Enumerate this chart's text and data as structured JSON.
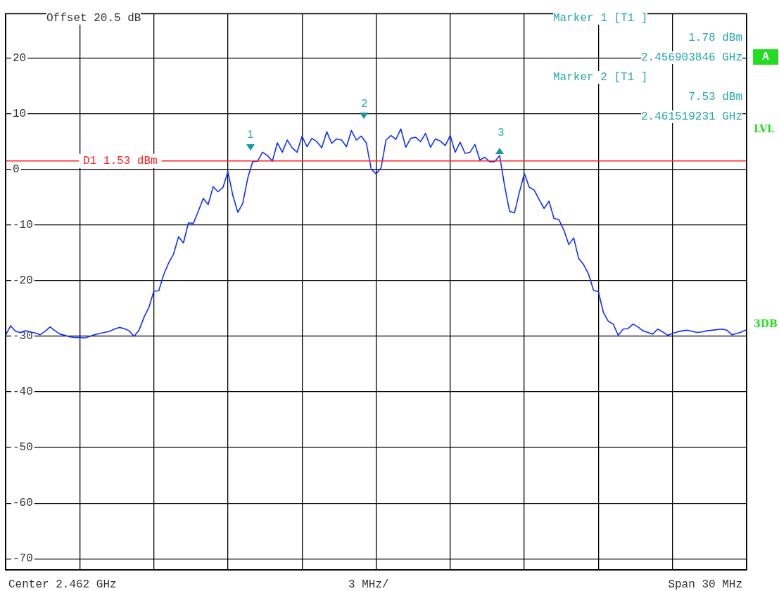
{
  "chart_data": {
    "type": "line",
    "ylim": [
      -72,
      28
    ],
    "categories": [
      null,
      null,
      null,
      null,
      null,
      null,
      null,
      null,
      null,
      null,
      null,
      null,
      null,
      null,
      null,
      null,
      null,
      null,
      null,
      null,
      null,
      null,
      null,
      null,
      null,
      null,
      null,
      null,
      null,
      null,
      null,
      null,
      null,
      null,
      null,
      null,
      null,
      null,
      null,
      null,
      null,
      null,
      null,
      null,
      null,
      null,
      null,
      null,
      null,
      null,
      null,
      null,
      null,
      null,
      null,
      null,
      null,
      null,
      null,
      null,
      null,
      null,
      null,
      null,
      null,
      null,
      null,
      null,
      null,
      null,
      null,
      null,
      null,
      null,
      null,
      null,
      null,
      null,
      null,
      null,
      null,
      null,
      null,
      null,
      null,
      null,
      null,
      null,
      null,
      null,
      null,
      null,
      null,
      null,
      null,
      null,
      null,
      null,
      null,
      null,
      null,
      null,
      null,
      null,
      null,
      null,
      null,
      null,
      null,
      null,
      null,
      null,
      null,
      null,
      null,
      null,
      null,
      null,
      null,
      null,
      null,
      null,
      null,
      null,
      null,
      null,
      null,
      null,
      null,
      null,
      null,
      null,
      null,
      null,
      null,
      null,
      null,
      null,
      null,
      null,
      null,
      null,
      null,
      null,
      null,
      null,
      null,
      null,
      null,
      null,
      null
    ],
    "yticks": [
      -70,
      -60,
      -50,
      -40,
      -30,
      -20,
      -10,
      0,
      10,
      20
    ],
    "tick_labels": "y",
    "grid": true,
    "legend": false,
    "marker": "none",
    "line_style": "solid",
    "series": [
      {
        "color": "#1030ff",
        "values": [
          -29.8,
          -28.1,
          -29.1,
          -29.3,
          -29.0,
          -29.2,
          -29.4,
          -29.7,
          -29.1,
          -28.3,
          -29.0,
          -29.6,
          -29.8,
          -30.1,
          -30.2,
          -30.2,
          -30.3,
          -30.0,
          -29.7,
          -29.5,
          -29.3,
          -29.1,
          -28.7,
          -28.4,
          -28.6,
          -29.0,
          -30.0,
          -28.9,
          -26.6,
          -24.8,
          -21.9,
          -21.8,
          -18.9,
          -16.8,
          -15.2,
          -12.1,
          -13.2,
          -9.6,
          -9.7,
          -7.5,
          -5.2,
          -6.3,
          -3.1,
          -4.0,
          -3.2,
          -0.4,
          -4.7,
          -7.7,
          -6.1,
          -1.6,
          1.4,
          1.5,
          3.1,
          2.5,
          1.5,
          4.8,
          3.1,
          5.3,
          3.9,
          3.1,
          6.0,
          4.1,
          5.6,
          5.0,
          3.9,
          6.8,
          4.7,
          5.5,
          5.3,
          4.1,
          7.0,
          5.3,
          6.0,
          4.8,
          0.1,
          -0.8,
          0.3,
          5.3,
          6.1,
          5.4,
          7.3,
          4.0,
          5.6,
          5.8,
          5.0,
          6.5,
          4.0,
          5.5,
          5.1,
          4.3,
          6.1,
          3.1,
          4.9,
          2.9,
          3.1,
          4.5,
          1.7,
          2.2,
          1.4,
          1.4,
          2.5,
          -2.9,
          -7.5,
          -7.8,
          -4.1,
          -0.7,
          -3.2,
          -3.7,
          -5.4,
          -7.0,
          -5.7,
          -8.8,
          -9.0,
          -10.9,
          -13.5,
          -12.3,
          -16.0,
          -17.1,
          -18.8,
          -21.7,
          -22.0,
          -25.7,
          -27.3,
          -27.8,
          -29.8,
          -28.7,
          -28.6,
          -27.8,
          -28.3,
          -29.0,
          -29.3,
          -29.6,
          -28.7,
          -29.2,
          -29.8,
          -29.5,
          -29.2,
          -29.0,
          -28.9,
          -29.1,
          -29.3,
          -29.2,
          -29.0,
          -28.9,
          -28.8,
          -28.7,
          -28.9,
          -29.7,
          -29.5,
          -29.2,
          -28.8
        ]
      }
    ],
    "ref_lines": [
      {
        "axis": "y",
        "value": 1.53,
        "label": "D1 1.53 dBm",
        "color": "#ff2020"
      }
    ],
    "annotations": [
      "Offset 20.5 dB",
      "Marker 1 [T1 ]",
      "1.78 dBm",
      "2.456903846 GHz",
      "Marker 2 [T1 ]",
      "7.53 dBm",
      "2.461519231 GHz",
      "Center 2.462 GHz",
      "3 MHz/",
      "Span 30 MHz",
      "A",
      "LVL",
      "3DB",
      "1",
      "2",
      "3"
    ]
  }
}
